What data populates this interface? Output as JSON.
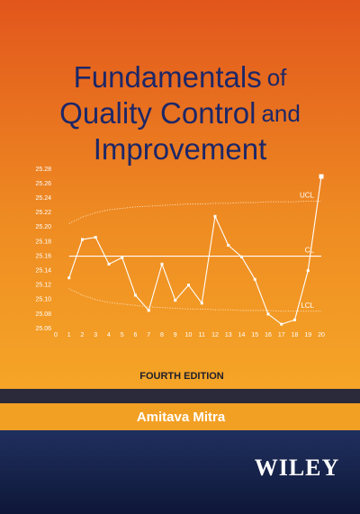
{
  "title": [
    "Fundamentals",
    "of",
    "Quality Control",
    "and",
    "Improvement"
  ],
  "edition": "FOURTH EDITION",
  "author": "Amitava Mitra",
  "publisher": "WILEY",
  "chart_data": {
    "type": "line",
    "x": [
      1,
      2,
      3,
      4,
      5,
      6,
      7,
      8,
      9,
      10,
      11,
      12,
      13,
      14,
      15,
      16,
      17,
      18,
      19,
      20
    ],
    "series": [
      {
        "color": "#ffffff",
        "line_style": "solid",
        "markers": true,
        "values": [
          25.13,
          25.183,
          25.186,
          25.149,
          25.158,
          25.106,
          25.085,
          25.149,
          25.099,
          25.12,
          25.095,
          25.215,
          25.175,
          25.159,
          25.128,
          25.08,
          25.066,
          25.072,
          25.14,
          25.27
        ]
      },
      {
        "name": "UCL",
        "color": "#fde3c0",
        "line_style": "dotted",
        "markers": false,
        "values": [
          25.205,
          25.214,
          25.22,
          25.224,
          25.226,
          25.228,
          25.229,
          25.23,
          25.231,
          25.232,
          25.232,
          25.233,
          25.233,
          25.234,
          25.234,
          25.235,
          25.235,
          25.235,
          25.236,
          25.236
        ]
      },
      {
        "name": "CL",
        "color": "#ffffff",
        "line_style": "solid",
        "markers": false,
        "values": [
          25.16,
          25.16,
          25.16,
          25.16,
          25.16,
          25.16,
          25.16,
          25.16,
          25.16,
          25.16,
          25.16,
          25.16,
          25.16,
          25.16,
          25.16,
          25.16,
          25.16,
          25.16,
          25.16,
          25.16
        ]
      },
      {
        "name": "LCL",
        "color": "#fde3c0",
        "line_style": "dotted",
        "markers": false,
        "values": [
          25.115,
          25.106,
          25.1,
          25.096,
          25.094,
          25.092,
          25.09,
          25.089,
          25.088,
          25.087,
          25.087,
          25.086,
          25.086,
          25.085,
          25.085,
          25.085,
          25.084,
          25.084,
          25.084,
          25.084
        ]
      }
    ],
    "xlim": [
      0,
      20
    ],
    "xticks": [
      0,
      1,
      2,
      3,
      4,
      5,
      6,
      7,
      8,
      9,
      10,
      11,
      12,
      13,
      14,
      15,
      16,
      17,
      18,
      19,
      20
    ],
    "ylim": [
      25.06,
      25.28
    ],
    "yticks": [
      25.06,
      25.08,
      {
        "value": 25.1,
        "label": "25.10"
      },
      25.12,
      25.14,
      25.16,
      25.18,
      {
        "value": 25.2,
        "label": "25.20"
      },
      25.22,
      25.24,
      25.26,
      25.28
    ]
  }
}
